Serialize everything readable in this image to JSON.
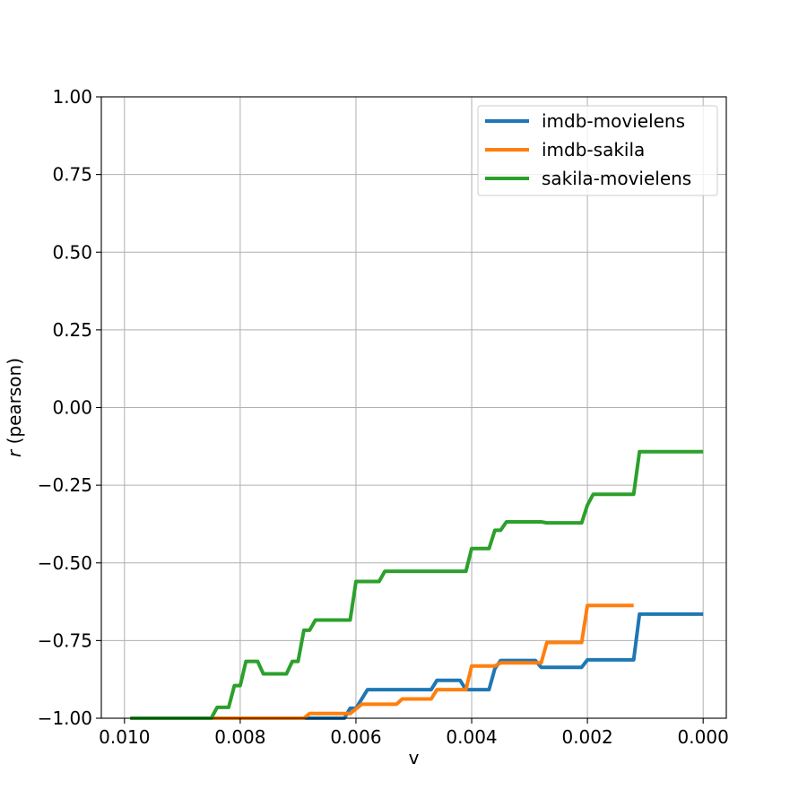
{
  "chart_data": {
    "type": "line",
    "title": "",
    "xlabel": "v",
    "ylabel_var": "r",
    "ylabel_rest": " (pearson)",
    "xlim": [
      0.0104,
      -0.0004
    ],
    "ylim": [
      -1.0,
      1.0
    ],
    "x_inverted": true,
    "grid": true,
    "legend_position": "upper right",
    "x_ticks": [
      {
        "value": 0.01,
        "label": "0.010"
      },
      {
        "value": 0.008,
        "label": "0.008"
      },
      {
        "value": 0.006,
        "label": "0.006"
      },
      {
        "value": 0.004,
        "label": "0.004"
      },
      {
        "value": 0.002,
        "label": "0.002"
      },
      {
        "value": 0.0,
        "label": "0.000"
      }
    ],
    "y_ticks": [
      {
        "value": 1.0,
        "label": "1.00"
      },
      {
        "value": 0.75,
        "label": "0.75"
      },
      {
        "value": 0.5,
        "label": "0.50"
      },
      {
        "value": 0.25,
        "label": "0.25"
      },
      {
        "value": 0.0,
        "label": "0.00"
      },
      {
        "value": -0.25,
        "label": "−0.25"
      },
      {
        "value": -0.5,
        "label": "−0.50"
      },
      {
        "value": -0.75,
        "label": "−0.75"
      },
      {
        "value": -1.0,
        "label": "−1.00"
      }
    ],
    "series": [
      {
        "name": "imdb-movielens",
        "color": "#1f77b4",
        "points": [
          [
            0.0099,
            -1.0
          ],
          [
            0.0062,
            -1.0
          ],
          [
            0.0061,
            -0.968
          ],
          [
            0.006,
            -0.968
          ],
          [
            0.0058,
            -0.908
          ],
          [
            0.0047,
            -0.908
          ],
          [
            0.0046,
            -0.878
          ],
          [
            0.0042,
            -0.878
          ],
          [
            0.0041,
            -0.908
          ],
          [
            0.0037,
            -0.908
          ],
          [
            0.0036,
            -0.84
          ],
          [
            0.0035,
            -0.814
          ],
          [
            0.0029,
            -0.814
          ],
          [
            0.0028,
            -0.836
          ],
          [
            0.0021,
            -0.836
          ],
          [
            0.002,
            -0.812
          ],
          [
            0.0012,
            -0.812
          ],
          [
            0.0011,
            -0.665
          ],
          [
            0.0,
            -0.665
          ]
        ]
      },
      {
        "name": "imdb-sakila",
        "color": "#ff7f0e",
        "points": [
          [
            0.0099,
            -1.0
          ],
          [
            0.0069,
            -1.0
          ],
          [
            0.0068,
            -0.985
          ],
          [
            0.0061,
            -0.985
          ],
          [
            0.0059,
            -0.955
          ],
          [
            0.0053,
            -0.955
          ],
          [
            0.0052,
            -0.938
          ],
          [
            0.0047,
            -0.938
          ],
          [
            0.0046,
            -0.908
          ],
          [
            0.0041,
            -0.908
          ],
          [
            0.004,
            -0.832
          ],
          [
            0.0036,
            -0.832
          ],
          [
            0.0035,
            -0.822
          ],
          [
            0.0028,
            -0.822
          ],
          [
            0.0027,
            -0.756
          ],
          [
            0.0021,
            -0.756
          ],
          [
            0.002,
            -0.637
          ],
          [
            0.0012,
            -0.637
          ]
        ]
      },
      {
        "name": "sakila-movielens",
        "color": "#2ca02c",
        "points": [
          [
            0.0099,
            -1.0
          ],
          [
            0.0085,
            -1.0
          ],
          [
            0.0084,
            -0.965
          ],
          [
            0.0082,
            -0.965
          ],
          [
            0.0081,
            -0.895
          ],
          [
            0.008,
            -0.895
          ],
          [
            0.0079,
            -0.817
          ],
          [
            0.0077,
            -0.817
          ],
          [
            0.0076,
            -0.857
          ],
          [
            0.0072,
            -0.857
          ],
          [
            0.0071,
            -0.817
          ],
          [
            0.007,
            -0.817
          ],
          [
            0.0069,
            -0.717
          ],
          [
            0.0068,
            -0.717
          ],
          [
            0.0067,
            -0.684
          ],
          [
            0.0061,
            -0.684
          ],
          [
            0.006,
            -0.56
          ],
          [
            0.0056,
            -0.56
          ],
          [
            0.0055,
            -0.527
          ],
          [
            0.0041,
            -0.527
          ],
          [
            0.004,
            -0.454
          ],
          [
            0.0037,
            -0.454
          ],
          [
            0.0036,
            -0.395
          ],
          [
            0.0035,
            -0.395
          ],
          [
            0.0034,
            -0.368
          ],
          [
            0.0028,
            -0.368
          ],
          [
            0.0027,
            -0.371
          ],
          [
            0.0021,
            -0.371
          ],
          [
            0.002,
            -0.314
          ],
          [
            0.0019,
            -0.279
          ],
          [
            0.0012,
            -0.279
          ],
          [
            0.0011,
            -0.142
          ],
          [
            0.0,
            -0.142
          ]
        ]
      }
    ]
  }
}
